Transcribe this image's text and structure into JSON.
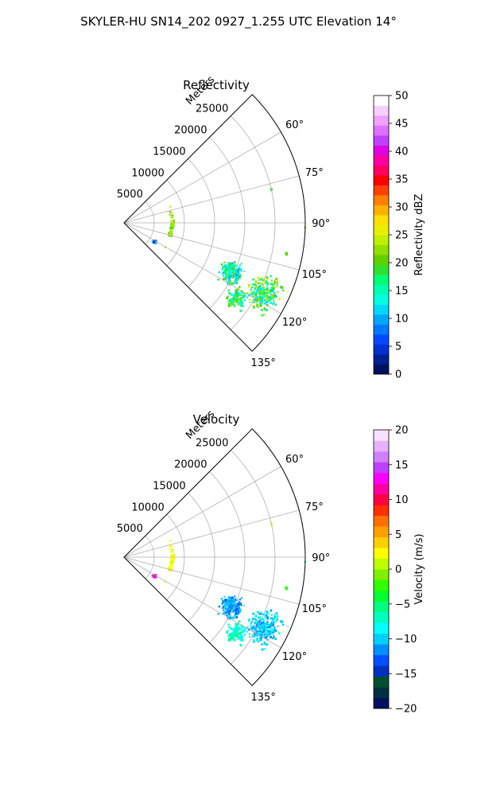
{
  "figure": {
    "title": "SKYLER-HU  SN14_202  0927_1.255 UTC Elevation 14°"
  },
  "chart_data": [
    {
      "type": "heatmap",
      "projection": "polar-sector",
      "title": "Reflectivity",
      "r_label": "Meters",
      "r_max": 30000,
      "r_ticks": [
        5000,
        10000,
        15000,
        20000,
        25000
      ],
      "r_tick_labels": [
        "5000",
        "10000",
        "15000",
        "20000",
        "25000"
      ],
      "theta_range": [
        45,
        135
      ],
      "theta_ticks": [
        60,
        75,
        90,
        105,
        120,
        135
      ],
      "theta_tick_labels": [
        "60°",
        "75°",
        "90°",
        "105°",
        "120°",
        "135°"
      ],
      "grid": true,
      "colorbar": {
        "label": "Reflectivity dBZ",
        "vmin": 0,
        "vmax": 50,
        "ticks": [
          0,
          5,
          10,
          15,
          20,
          25,
          30,
          35,
          40,
          45,
          50
        ],
        "tick_labels": [
          "0",
          "5",
          "10",
          "15",
          "20",
          "25",
          "30",
          "35",
          "40",
          "45",
          "50"
        ],
        "colors": [
          "#001060",
          "#002090",
          "#0030d0",
          "#0048ff",
          "#0078ff",
          "#00a8ff",
          "#00d8ff",
          "#00ffe0",
          "#00ffb0",
          "#00ff70",
          "#30e030",
          "#60d000",
          "#90e000",
          "#c0f000",
          "#e8f000",
          "#ffe000",
          "#ffb000",
          "#ff8000",
          "#ff4000",
          "#ff0000",
          "#ff0060",
          "#ff00a0",
          "#e000e0",
          "#c040ff",
          "#e070ff",
          "#f0a0ff",
          "#f8d0ff",
          "#ffffff"
        ]
      },
      "echoes": [
        {
          "r": 26000,
          "theta": 117,
          "r_spread": 3500,
          "t_spread": 9,
          "value": 18,
          "value_spread": 8,
          "density": 260
        },
        {
          "r": 19500,
          "theta": 115,
          "r_spread": 2500,
          "t_spread": 7,
          "value": 15,
          "value_spread": 6,
          "density": 200
        },
        {
          "r": 22500,
          "theta": 124,
          "r_spread": 2000,
          "t_spread": 6,
          "value": 18,
          "value_spread": 6,
          "density": 120
        },
        {
          "r": 8000,
          "theta": 95,
          "r_spread": 600,
          "t_spread": 30,
          "value": 22,
          "value_spread": 3,
          "density": 45
        },
        {
          "r": 6000,
          "theta": 122,
          "r_spread": 700,
          "t_spread": 3,
          "value": 8,
          "value_spread": 3,
          "density": 25
        },
        {
          "r": 25000,
          "theta": 77,
          "r_spread": 300,
          "t_spread": 1,
          "value": 18,
          "value_spread": 3,
          "density": 5
        },
        {
          "r": 27500,
          "theta": 101,
          "r_spread": 300,
          "t_spread": 1,
          "value": 20,
          "value_spread": 3,
          "density": 4
        },
        {
          "r": 30000,
          "theta": 92,
          "r_spread": 200,
          "t_spread": 1,
          "value": 20,
          "value_spread": 3,
          "density": 3
        }
      ]
    },
    {
      "type": "heatmap",
      "projection": "polar-sector",
      "title": "Velocity",
      "r_label": "Meters",
      "r_max": 30000,
      "r_ticks": [
        5000,
        10000,
        15000,
        20000,
        25000
      ],
      "r_tick_labels": [
        "5000",
        "10000",
        "15000",
        "20000",
        "25000"
      ],
      "theta_range": [
        45,
        135
      ],
      "theta_ticks": [
        60,
        75,
        90,
        105,
        120,
        135
      ],
      "theta_tick_labels": [
        "60°",
        "75°",
        "90°",
        "105°",
        "120°",
        "135°"
      ],
      "grid": true,
      "colorbar": {
        "label": "Velocity (m/s)",
        "vmin": -20,
        "vmax": 20,
        "ticks": [
          -20,
          -15,
          -10,
          -5,
          0,
          5,
          10,
          15,
          20
        ],
        "tick_labels": [
          "−20",
          "−15",
          "−10",
          "−5",
          "0",
          "5",
          "10",
          "15",
          "20"
        ],
        "colors": [
          "#001060",
          "#003040",
          "#005030",
          "#0030c0",
          "#0050ff",
          "#0090ff",
          "#00d0ff",
          "#00ffff",
          "#00ffc0",
          "#00ff80",
          "#00ff30",
          "#30ff00",
          "#80f000",
          "#c0ff00",
          "#ffff00",
          "#ffd000",
          "#ffa000",
          "#ff7000",
          "#ff3000",
          "#ff0040",
          "#ff00a0",
          "#ff00ff",
          "#c040ff",
          "#d080ff",
          "#e8b0ff",
          "#f8e0ff"
        ]
      },
      "echoes": [
        {
          "r": 26000,
          "theta": 117,
          "r_spread": 3500,
          "t_spread": 9,
          "value": -10,
          "value_spread": 2,
          "density": 260
        },
        {
          "r": 19500,
          "theta": 115,
          "r_spread": 2500,
          "t_spread": 7,
          "value": -11,
          "value_spread": 2,
          "density": 200
        },
        {
          "r": 22500,
          "theta": 124,
          "r_spread": 2000,
          "t_spread": 6,
          "value": -7,
          "value_spread": 2,
          "density": 120
        },
        {
          "r": 8000,
          "theta": 95,
          "r_spread": 600,
          "t_spread": 30,
          "value": 2,
          "value_spread": 1,
          "density": 45
        },
        {
          "r": 6000,
          "theta": 122,
          "r_spread": 700,
          "t_spread": 3,
          "value": 13,
          "value_spread": 2,
          "density": 25
        },
        {
          "r": 25000,
          "theta": 77,
          "r_spread": 300,
          "t_spread": 1,
          "value": 2,
          "value_spread": 1,
          "density": 5
        },
        {
          "r": 27500,
          "theta": 101,
          "r_spread": 300,
          "t_spread": 1,
          "value": -3,
          "value_spread": 1,
          "density": 4
        },
        {
          "r": 30000,
          "theta": 92,
          "r_spread": 200,
          "t_spread": 1,
          "value": -5,
          "value_spread": 1,
          "density": 3
        }
      ]
    }
  ]
}
